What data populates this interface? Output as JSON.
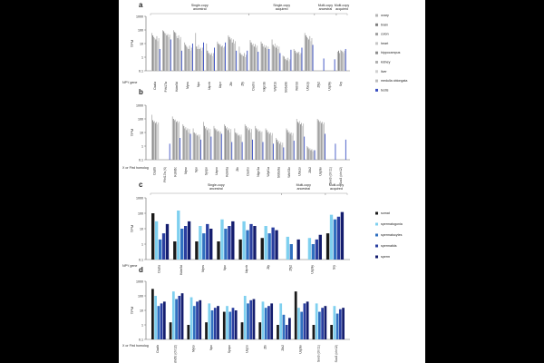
{
  "figure": {
    "panel_labels": [
      "a",
      "b",
      "c",
      "d"
    ],
    "y_axis_label": "TPM"
  },
  "chart_data": [
    {
      "panel": "a",
      "type": "bar",
      "scale": "log",
      "ylabel": "TPM",
      "ylim": [
        0.1,
        1000
      ],
      "y_ticks": [
        "1000",
        "100",
        "10",
        "1",
        "0.1"
      ],
      "row_label": "NPY gene",
      "categories": [
        "Dazla",
        "Fthl17a",
        "Kdm5d",
        "Mycs",
        "Npx",
        "Uqcrb",
        "Uqcr",
        "Zfx",
        "Zfy",
        "Dachs",
        "Nlgn3b",
        "Wipf1b",
        "Slc6a9b",
        "Wdr33",
        "Uba1y",
        "Zfy2",
        "Usp9y",
        "Sry"
      ],
      "groups": [
        {
          "label": "Single-copy ancestral",
          "categories": [
            "Dazla",
            "Fthl17a",
            "Kdm5d",
            "Mycs",
            "Npx",
            "Uqcrb",
            "Uqcr",
            "Zfx",
            "Zfy"
          ]
        },
        {
          "label": "Single-copy acquired",
          "categories": [
            "Dachs",
            "Nlgn3b",
            "Wipf1b",
            "Slc6a9b",
            "Wdr33",
            "Uba1y"
          ]
        },
        {
          "label": "Multi-copy ancestral",
          "categories": [
            "Zfy2",
            "Usp9y"
          ]
        },
        {
          "label": "Multi-copy acquired",
          "categories": [
            "Sry"
          ]
        }
      ],
      "legend": [
        "ovary",
        "brain",
        "colon",
        "heart",
        "hippocampus",
        "kidney",
        "liver",
        "medulla oblongata",
        "testis"
      ],
      "series": [
        {
          "name": "ovary",
          "values": [
            60,
            95,
            95,
            12,
            60,
            10,
            14,
            40,
            6,
            18,
            14,
            20,
            1.3,
            4,
            60,
            0.1,
            0.1,
            2.5
          ]
        },
        {
          "name": "brain",
          "values": [
            40,
            80,
            70,
            8,
            6,
            3,
            10,
            30,
            2,
            12,
            10,
            8,
            1.1,
            3,
            40,
            0.1,
            0.1,
            3
          ]
        },
        {
          "name": "colon",
          "values": [
            30,
            60,
            60,
            6,
            4,
            2,
            8,
            20,
            1.5,
            8,
            6,
            6,
            0.7,
            2,
            30,
            0.1,
            0.1,
            2
          ]
        },
        {
          "name": "heart",
          "values": [
            25,
            55,
            35,
            5,
            8,
            2,
            9,
            25,
            1.5,
            10,
            8,
            10,
            0.8,
            2.5,
            25,
            0.1,
            0.1,
            3.5
          ]
        },
        {
          "name": "hippocampus",
          "values": [
            20,
            40,
            25,
            4,
            4,
            1.5,
            6,
            12,
            1.2,
            6,
            5,
            5,
            0.6,
            2,
            20,
            0.1,
            0.1,
            3
          ]
        },
        {
          "name": "kidney",
          "values": [
            35,
            50,
            40,
            7,
            5,
            2,
            7,
            20,
            2,
            9,
            7,
            7,
            0.9,
            2.5,
            35,
            0.1,
            0.1,
            2.5
          ]
        },
        {
          "name": "liver",
          "values": [
            15,
            30,
            20,
            3,
            3,
            1.2,
            5,
            10,
            1,
            5,
            4,
            4,
            0.5,
            1.5,
            15,
            0.1,
            0.1,
            2
          ]
        },
        {
          "name": "medulla oblongata",
          "values": [
            25,
            45,
            30,
            5,
            5,
            2,
            6,
            15,
            1.5,
            7,
            6,
            6,
            0.7,
            2,
            25,
            0.1,
            0.1,
            3
          ]
        },
        {
          "name": "testis",
          "values": [
            4,
            20,
            3,
            10,
            12,
            5,
            12,
            3,
            3,
            2.5,
            4,
            2,
            3.5,
            5,
            8,
            0.8,
            0.7,
            4
          ]
        }
      ]
    },
    {
      "panel": "b",
      "type": "bar",
      "scale": "log",
      "ylabel": "TPM",
      "ylim": [
        0.1,
        1000
      ],
      "y_ticks": [
        "1000",
        "100",
        "10",
        "1",
        "0.1"
      ],
      "row_label": "X or Ftrd homolog",
      "categories": [
        "Dazlb",
        "Fthl17a (X)",
        "Kdm5c",
        "Mycx",
        "Npx",
        "Sycpx",
        "Uqcrx",
        "Kdm6a",
        "Zfx",
        "Dachx",
        "Nlgn3a",
        "Wipf1a",
        "Slc6a9a",
        "Wdr33x",
        "Uba1x",
        "Zfx2",
        "Usp9x",
        "Sox3 (chr11)",
        "Sox3 (chr12)"
      ],
      "series": [
        {
          "name": "ovary",
          "values": [
            200,
            0.1,
            150,
            40,
            20,
            60,
            30,
            40,
            20,
            40,
            30,
            20,
            4,
            20,
            100,
            1,
            100,
            0.1,
            0.1
          ]
        },
        {
          "name": "brain",
          "values": [
            80,
            0.1,
            100,
            30,
            10,
            30,
            20,
            30,
            10,
            30,
            20,
            15,
            3,
            15,
            60,
            0.8,
            80,
            0.1,
            0.1
          ]
        },
        {
          "name": "colon",
          "values": [
            60,
            0.1,
            80,
            20,
            8,
            20,
            15,
            20,
            8,
            20,
            15,
            10,
            2,
            10,
            50,
            0.6,
            60,
            0.1,
            0.1
          ]
        },
        {
          "name": "heart",
          "values": [
            70,
            0.1,
            90,
            25,
            9,
            25,
            18,
            25,
            9,
            25,
            18,
            12,
            2.5,
            12,
            70,
            0.7,
            70,
            0.1,
            0.1
          ]
        },
        {
          "name": "hippocampus",
          "values": [
            50,
            0.1,
            60,
            15,
            6,
            15,
            12,
            15,
            6,
            15,
            12,
            8,
            1.5,
            8,
            40,
            0.5,
            50,
            0.1,
            0.1
          ]
        },
        {
          "name": "kidney",
          "values": [
            60,
            0.1,
            70,
            20,
            7,
            20,
            14,
            20,
            7,
            20,
            14,
            10,
            2,
            10,
            50,
            0.6,
            60,
            0.1,
            0.1
          ]
        },
        {
          "name": "liver",
          "values": [
            40,
            0.1,
            50,
            10,
            5,
            10,
            10,
            10,
            5,
            10,
            10,
            6,
            1.2,
            6,
            30,
            0.4,
            40,
            0.1,
            0.1
          ]
        },
        {
          "name": "medulla oblongata",
          "values": [
            55,
            0.1,
            65,
            18,
            7,
            18,
            12,
            18,
            7,
            18,
            12,
            9,
            1.8,
            9,
            45,
            0.5,
            55,
            0.1,
            0.1
          ]
        },
        {
          "name": "testis",
          "values": [
            0.1,
            1.5,
            4,
            8,
            3,
            5,
            8,
            2,
            2,
            3,
            2,
            1.5,
            0.8,
            2.5,
            5,
            0.5,
            8,
            1.5,
            3
          ]
        }
      ]
    },
    {
      "panel": "c",
      "type": "bar",
      "scale": "log",
      "ylabel": "TPM",
      "ylim": [
        0.1,
        1000
      ],
      "y_ticks": [
        "1000",
        "100",
        "10",
        "1",
        "0.1"
      ],
      "row_label": "NPY gene",
      "categories": [
        "Dazla",
        "Kdm5d",
        "Mycs",
        "Npx",
        "Uqcrb",
        "Zfy",
        "Zfy2",
        "Usp9y",
        "Sry"
      ],
      "groups": [
        {
          "label": "Single-copy ancestral",
          "categories": [
            "Dazla",
            "Kdm5d",
            "Mycs",
            "Npx",
            "Uqcrb",
            "Zfy"
          ]
        },
        {
          "label": "Multi-copy ancestral",
          "categories": [
            "Zfy2",
            "Usp9y"
          ]
        },
        {
          "label": "Multi-copy acquired",
          "categories": [
            "Sry"
          ]
        }
      ],
      "legend": [
        "somat",
        "spermatogonia",
        "spermatocytes",
        "spermatids",
        "sperm"
      ],
      "series": [
        {
          "name": "somat",
          "values": [
            100,
            1.5,
            1.5,
            1.5,
            2,
            2.5,
            0.1,
            0.1,
            5
          ]
        },
        {
          "name": "spermatogonia",
          "values": [
            30,
            150,
            15,
            40,
            30,
            15,
            3,
            2.5,
            80
          ]
        },
        {
          "name": "spermatocytes",
          "values": [
            2,
            10,
            5,
            10,
            8,
            5,
            1,
            1,
            40
          ]
        },
        {
          "name": "spermatids",
          "values": [
            5,
            15,
            20,
            15,
            20,
            12,
            0.1,
            2,
            60
          ]
        },
        {
          "name": "sperm",
          "values": [
            20,
            30,
            10,
            30,
            15,
            8,
            2,
            4,
            120
          ]
        }
      ]
    },
    {
      "panel": "d",
      "type": "bar",
      "scale": "log",
      "ylabel": "TPM",
      "ylim": [
        0.1,
        1000
      ],
      "y_ticks": [
        "1000",
        "100",
        "10",
        "1",
        "0.1"
      ],
      "row_label": "X or Ftrd homolog",
      "categories": [
        "Dazlb",
        "Kdm5c (chr12)",
        "Mycx",
        "Npx",
        "Sycpx",
        "Uqcrx",
        "Zfx",
        "Zfx2",
        "Usp9x",
        "Sox3 (chr11)",
        "Sox3 (chr12)"
      ],
      "series": [
        {
          "name": "somat",
          "values": [
            300,
            1.5,
            1,
            1.5,
            8,
            1.5,
            1.5,
            1,
            200,
            1,
            1
          ]
        },
        {
          "name": "spermatogonia",
          "values": [
            100,
            200,
            80,
            30,
            20,
            100,
            40,
            30,
            15,
            30,
            20
          ]
        },
        {
          "name": "spermatocytes",
          "values": [
            20,
            60,
            20,
            10,
            8,
            30,
            15,
            5,
            8,
            8,
            6
          ]
        },
        {
          "name": "spermatids",
          "values": [
            30,
            100,
            40,
            15,
            15,
            50,
            20,
            1,
            30,
            15,
            12
          ]
        },
        {
          "name": "sperm",
          "values": [
            40,
            150,
            50,
            20,
            10,
            60,
            30,
            3,
            40,
            20,
            15
          ]
        }
      ]
    }
  ]
}
